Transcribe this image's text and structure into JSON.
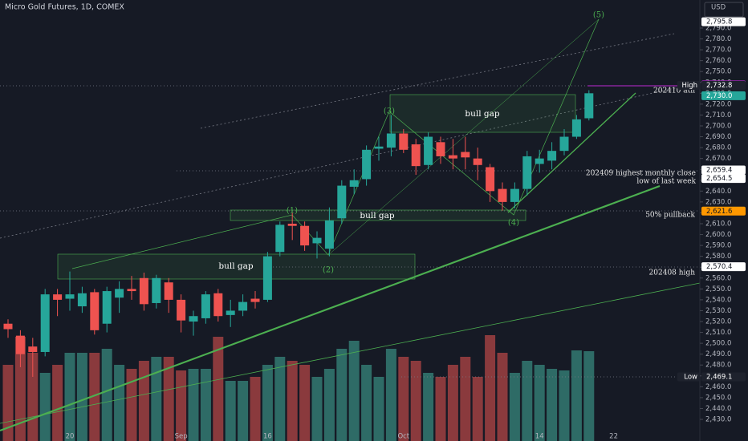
{
  "chart_data": {
    "type": "candlestick",
    "title": "Micro Gold Futures, 1D, COMEX",
    "currency": "USD",
    "categories": [
      null,
      null,
      null,
      null,
      null,
      "20",
      null,
      null,
      null,
      null,
      null,
      null,
      null,
      null,
      "Sep",
      null,
      null,
      null,
      null,
      null,
      null,
      "16",
      null,
      null,
      null,
      null,
      null,
      null,
      null,
      null,
      null,
      null,
      "Oct",
      null,
      null,
      null,
      null,
      null,
      null,
      null,
      null,
      null,
      null,
      "14",
      null,
      null,
      null,
      null,
      null,
      "22"
    ],
    "open": [
      2518,
      2507,
      2497,
      2492,
      2545,
      2541,
      2534,
      2547,
      2518,
      2542,
      2550,
      2560,
      2537,
      2556,
      2540,
      2520,
      2523,
      2546,
      2526,
      2530,
      2541,
      2540,
      2584,
      2610,
      2608,
      2592,
      2587,
      2615,
      2644,
      2651,
      2679,
      2680,
      2693,
      2683,
      2664,
      2685,
      2673,
      2676,
      2670,
      2662,
      2642,
      2630,
      2642,
      2665,
      2668,
      2677,
      2690,
      2707,
      null,
      null
    ],
    "high": [
      2522,
      2512,
      2505,
      2550,
      2550,
      2566,
      2552,
      2550,
      2552,
      2557,
      2562,
      2565,
      2563,
      2560,
      2545,
      2530,
      2548,
      2550,
      2540,
      2545,
      2548,
      2584,
      2612,
      2620,
      2612,
      2603,
      2625,
      2650,
      2660,
      2682,
      2690,
      2710,
      2697,
      2688,
      2694,
      2690,
      2688,
      2690,
      2680,
      2665,
      2648,
      2648,
      2677,
      2678,
      2685,
      2697,
      2710,
      2732.8,
      null,
      null
    ],
    "low": [
      2505,
      2478,
      2469.1,
      2488,
      2525,
      2530,
      2528,
      2508,
      2510,
      2528,
      2540,
      2530,
      2532,
      2528,
      2510,
      2507,
      2518,
      2520,
      2515,
      2525,
      2532,
      2538,
      2580,
      2595,
      2585,
      2578,
      2580,
      2610,
      2637,
      2645,
      2668,
      2672,
      2675,
      2655,
      2660,
      2665,
      2660,
      2660,
      2650,
      2630,
      2622,
      2624,
      2636,
      2657,
      2660,
      2673,
      2688,
      2705,
      null,
      null
    ],
    "close": [
      2513,
      2490,
      2492,
      2545,
      2540,
      2545,
      2546,
      2512,
      2548,
      2550,
      2548,
      2536,
      2560,
      2540,
      2521,
      2525,
      2545,
      2525,
      2530,
      2538,
      2538,
      2580,
      2609,
      2608,
      2590,
      2597,
      2613,
      2645,
      2650,
      2678,
      2681,
      2693,
      2678,
      2663,
      2690,
      2672,
      2670,
      2671,
      2664,
      2640,
      2630,
      2642,
      2672,
      2670,
      2677,
      2690,
      2706,
      2730,
      null,
      null
    ],
    "volume": [
      95,
      130,
      110,
      85,
      95,
      110,
      110,
      110,
      115,
      95,
      90,
      100,
      105,
      105,
      88,
      90,
      90,
      130,
      75,
      75,
      80,
      95,
      105,
      100,
      95,
      80,
      90,
      115,
      125,
      95,
      80,
      115,
      105,
      100,
      85,
      80,
      95,
      105,
      80,
      132,
      110,
      85,
      100,
      95,
      90,
      88,
      113,
      112,
      null,
      null
    ],
    "vlim": [
      0,
      550
    ],
    "colors": {
      "up": "#26a69a",
      "down": "#ef5350",
      "volume_up": "#2e6b66",
      "volume_down": "#8a3a3d"
    },
    "ylim": [
      2410.1,
      2815.8
    ],
    "yticks": [
      {
        "value": 2430,
        "label": "2,430.0"
      },
      {
        "value": 2440,
        "label": "2,440.0"
      },
      {
        "value": 2450,
        "label": "2,450.0"
      },
      {
        "value": 2460,
        "label": "2,460.0"
      },
      {
        "value": 2470,
        "label": "2,470.0"
      },
      {
        "value": 2480,
        "label": "2,480.0"
      },
      {
        "value": 2490,
        "label": "2,490.0"
      },
      {
        "value": 2500,
        "label": "2,500.0"
      },
      {
        "value": 2510,
        "label": "2,510.0"
      },
      {
        "value": 2520,
        "label": "2,520.0"
      },
      {
        "value": 2530,
        "label": "2,530.0"
      },
      {
        "value": 2540,
        "label": "2,540.0"
      },
      {
        "value": 2550,
        "label": "2,550.0"
      },
      {
        "value": 2560,
        "label": "2,560.0"
      },
      {
        "value": 2570,
        "label": "2,570.0"
      },
      {
        "value": 2580,
        "label": "2,580.0"
      },
      {
        "value": 2590,
        "label": "2,590.0"
      },
      {
        "value": 2600,
        "label": "2,600.0"
      },
      {
        "value": 2610,
        "label": "2,610.0"
      },
      {
        "value": 2620,
        "label": "2,620.0"
      },
      {
        "value": 2630,
        "label": "2,630.0"
      },
      {
        "value": 2640,
        "label": "2,640.0"
      },
      {
        "value": 2650,
        "label": "2,650.0"
      },
      {
        "value": 2660,
        "label": "2,660.0"
      },
      {
        "value": 2670,
        "label": "2,670.0"
      },
      {
        "value": 2680,
        "label": "2,680.0"
      },
      {
        "value": 2690,
        "label": "2,690.0"
      },
      {
        "value": 2700,
        "label": "2,700.0"
      },
      {
        "value": 2710,
        "label": "2,710.0"
      },
      {
        "value": 2720,
        "label": "2,720.0"
      },
      {
        "value": 2730,
        "label": "2,730.0"
      },
      {
        "value": 2740,
        "label": "2,740.0"
      },
      {
        "value": 2750,
        "label": "2,750.0"
      },
      {
        "value": 2760,
        "label": "2,760.0"
      },
      {
        "value": 2770,
        "label": "2,770.0"
      },
      {
        "value": 2780,
        "label": "2,780.0"
      },
      {
        "value": 2790,
        "label": "2,790.0"
      }
    ],
    "price_labels": [
      {
        "value": 2795.8,
        "label": "2,795.8",
        "color": "#ffffff"
      },
      {
        "value": 2737.8,
        "label": "2,737.8",
        "color": "#9c27b0"
      },
      {
        "value": 2732.8,
        "label": "2,732.8",
        "tag": "High",
        "color": "#1e222d"
      },
      {
        "value": 2730.0,
        "label": "2,730.0",
        "color": "#26a69a"
      },
      {
        "value": 2659.4,
        "label": "2,659.4",
        "color": "#ffffff"
      },
      {
        "value": 2654.5,
        "label": "2,654.5",
        "color": "#ffffff"
      },
      {
        "value": 2621.6,
        "label": "2,621.6",
        "color": "#ff9800"
      },
      {
        "value": 2570.4,
        "label": "2,570.4",
        "color": "#ffffff"
      },
      {
        "value": 2469.1,
        "label": "2,469.1",
        "tag": "Low",
        "color": "#1e222d"
      }
    ],
    "annotations": [
      "bull gap",
      "bull gap",
      "bull gap",
      "(1)",
      "(2)",
      "(3)",
      "(4)",
      "(5)",
      "202410 ath",
      "202409 highest monthly close",
      "low of last week",
      "50% pullback",
      "202408 high"
    ]
  }
}
